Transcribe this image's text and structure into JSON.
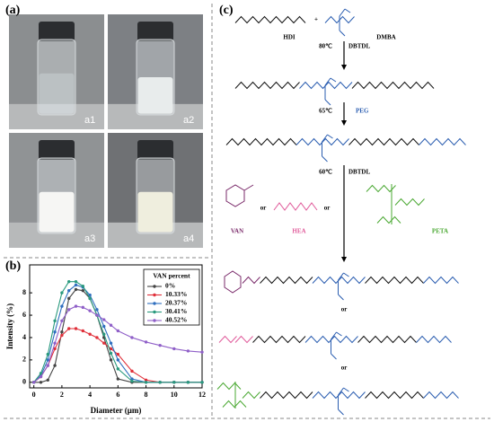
{
  "figure_labels": {
    "a": "(a)",
    "b": "(b)",
    "c": "(c)"
  },
  "panel_a": {
    "photos": [
      "a1",
      "a2",
      "a3",
      "a4"
    ]
  },
  "scheme": {
    "hdi": "HDI",
    "dmba": "DMBA",
    "plus": "+",
    "step1": {
      "temp": "80℃",
      "catalyst": "DBTDL"
    },
    "step2": {
      "temp": "65℃",
      "reagent": "PEG"
    },
    "step3": {
      "temp": "60℃",
      "catalyst": "DBTDL"
    },
    "capping_agents": [
      "VAN",
      "HEA",
      "PETA"
    ],
    "or": "or"
  },
  "chart_data": {
    "type": "line",
    "xlabel": "Diameter (μm)",
    "ylabel": "Intensity (%)",
    "legend_title": "VAN percent",
    "x": [
      0,
      0.5,
      1,
      1.5,
      2,
      2.5,
      3,
      3.5,
      4,
      4.5,
      5,
      5.5,
      6,
      7,
      8,
      9,
      10,
      11,
      12
    ],
    "series": [
      {
        "name": "0%",
        "color": "#444444",
        "values": [
          0,
          0,
          0.2,
          1.5,
          4.5,
          7.5,
          8.3,
          8.2,
          7.5,
          6,
          4,
          2,
          0.3,
          0,
          0,
          0,
          0,
          0,
          0
        ]
      },
      {
        "name": "10.33%",
        "color": "#e0303a",
        "values": [
          0,
          0.5,
          1.5,
          3,
          4.2,
          4.8,
          4.8,
          4.6,
          4.3,
          4,
          3.5,
          3,
          2.5,
          1,
          0.2,
          0,
          0,
          0,
          0
        ]
      },
      {
        "name": "20.37%",
        "color": "#2f6fbf",
        "values": [
          0,
          0.6,
          2,
          4.5,
          6.8,
          8.2,
          8.7,
          8.5,
          7.8,
          6.5,
          5,
          3.5,
          2,
          0.3,
          0,
          0,
          0,
          0,
          0
        ]
      },
      {
        "name": "30.41%",
        "color": "#2a9a7e",
        "values": [
          0,
          0.8,
          2.5,
          5.5,
          8,
          9,
          9,
          8.6,
          7.5,
          6,
          4.3,
          2.6,
          1.2,
          0.1,
          0,
          0,
          0,
          0,
          0
        ]
      },
      {
        "name": "40.52%",
        "color": "#8f5fc8",
        "values": [
          0,
          0.5,
          1.5,
          3.5,
          5.5,
          6.5,
          6.8,
          6.7,
          6.4,
          6,
          5.6,
          5.1,
          4.6,
          4,
          3.6,
          3.3,
          3,
          2.8,
          2.7
        ]
      }
    ],
    "xlim": [
      -0.3,
      12
    ],
    "ylim": [
      -0.5,
      10.5
    ],
    "xticks": [
      0,
      2,
      4,
      6,
      8,
      10,
      12
    ],
    "yticks": [
      0,
      2,
      4,
      6,
      8
    ],
    "legend": "upper right"
  }
}
